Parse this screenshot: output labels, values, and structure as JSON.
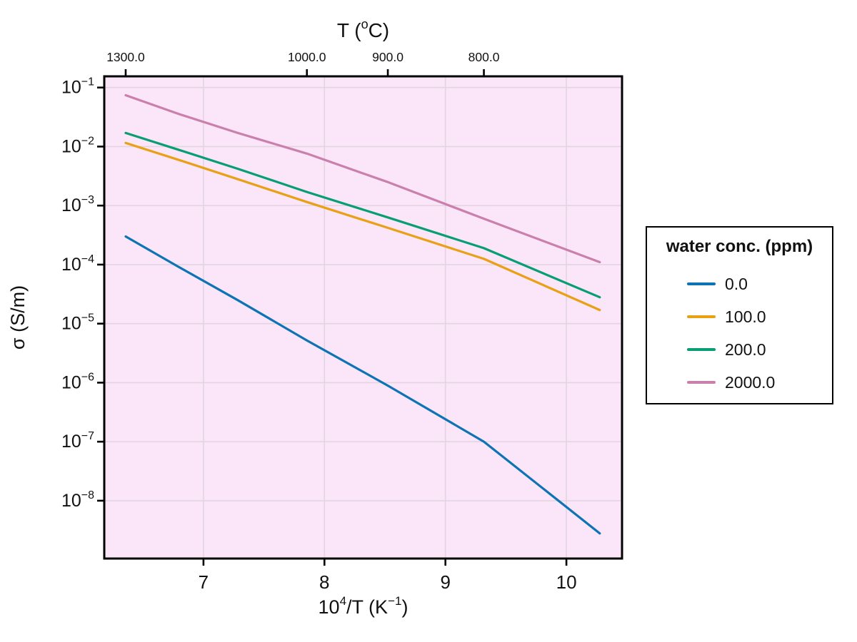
{
  "chart_data": {
    "type": "line",
    "title": "",
    "xlabel_text": "10^4/T (K^-1)",
    "xlabel_parts": [
      [
        "10",
        0
      ],
      [
        "4",
        1
      ],
      [
        "/T (K",
        0
      ],
      [
        "−1",
        1
      ],
      [
        ")",
        0
      ]
    ],
    "ylabel": "σ (S/m)",
    "top_axis_label_text": "T (°C)",
    "top_axis_label_parts": [
      [
        "T (",
        0
      ],
      [
        "o",
        1
      ],
      [
        "C)",
        0
      ]
    ],
    "xlim": [
      6.18,
      10.46
    ],
    "ylim_exp": [
      -8.98,
      -0.81
    ],
    "x_ticks": [
      "7",
      "8",
      "9",
      "10"
    ],
    "x_tick_values": [
      7,
      8,
      9,
      10
    ],
    "y_tick_exponents": [
      -1,
      -2,
      -3,
      -4,
      -5,
      -6,
      -7,
      -8
    ],
    "y_tick_base": "10",
    "top_ticks": [
      {
        "label": "1300.0",
        "x": 6.357
      },
      {
        "label": "1000.0",
        "x": 7.855
      },
      {
        "label": "900.0",
        "x": 8.524
      },
      {
        "label": "800.0",
        "x": 9.318
      }
    ],
    "grid": true,
    "colors": {
      "plot_bg": "#fbe5f8",
      "grid": "#e2d5e0",
      "spine": "#000000",
      "text": "#111111"
    },
    "legend": {
      "title": "water conc. (ppm)",
      "position": "right-outside"
    },
    "series": [
      {
        "label": "0.0",
        "color": "#0d73b4",
        "x": [
          6.357,
          6.789,
          7.284,
          7.855,
          8.524,
          9.318,
          10.276
        ],
        "y": [
          0.0003,
          9.3e-05,
          2.5e-05,
          5.2e-06,
          8.9e-07,
          1e-07,
          2.8e-09
        ]
      },
      {
        "label": "100.0",
        "color": "#e8a014",
        "x": [
          6.357,
          6.789,
          7.284,
          7.855,
          8.524,
          9.318,
          10.276
        ],
        "y": [
          0.0115,
          0.006,
          0.0028,
          0.00115,
          0.00042,
          0.000125,
          1.7e-05
        ]
      },
      {
        "label": "200.0",
        "color": "#089e73",
        "x": [
          6.357,
          6.789,
          7.284,
          7.855,
          8.524,
          9.318,
          10.276
        ],
        "y": [
          0.017,
          0.0089,
          0.0042,
          0.0017,
          0.00063,
          0.00019,
          2.8e-05
        ]
      },
      {
        "label": "2000.0",
        "color": "#cb7fad",
        "x": [
          6.357,
          6.789,
          7.284,
          7.855,
          8.524,
          9.318,
          10.276
        ],
        "y": [
          0.074,
          0.036,
          0.017,
          0.0076,
          0.0025,
          0.0006,
          0.00011
        ]
      }
    ]
  }
}
